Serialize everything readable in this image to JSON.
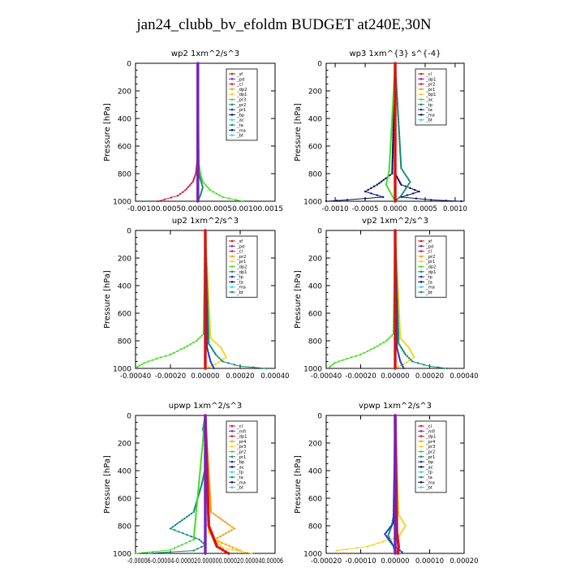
{
  "title": "jan24_clubb_bv_efoldm  BUDGET at240E,30N",
  "colors": {
    "red": "#dd1111",
    "purple": "#7722bb",
    "darkred": "#cc2244",
    "orange": "#ff9900",
    "yellow": "#f2d21a",
    "green": "#44dd22",
    "teal": "#118877",
    "blue": "#1133cc",
    "navy": "#001166",
    "cyan": "#22dddd",
    "magenta": "#bb00bb"
  },
  "chart_data": [
    {
      "type": "line",
      "title": "wp2   1xm^2/s^3",
      "ylabel": "Pressure [hPa]",
      "ylim": [
        1000,
        0
      ],
      "yticks": [
        "0",
        "200",
        "400",
        "600",
        "800",
        "1000"
      ],
      "xlim": [
        -0.00125,
        0.00155
      ],
      "xtick_label": "-0.00100.00050.00000.00050.00100.0015",
      "legend": [
        "_sf",
        "_pd",
        "_cl",
        "_dp2",
        "_dp1",
        "_pr3",
        "_pr2",
        "_pr1",
        "_bp",
        "_ac",
        "_ta",
        "_ma",
        "_bt"
      ],
      "series": [
        {
          "color": "green",
          "x": [
            0,
            1e-05,
            5e-05,
            0.0001,
            0.00025,
            0.0005,
            0.0009
          ],
          "y": [
            0,
            700,
            800,
            860,
            920,
            970,
            1000
          ]
        },
        {
          "color": "darkred",
          "x": [
            0,
            -1e-05,
            -4e-05,
            -0.0001,
            -0.00025,
            -0.0004,
            -0.0008
          ],
          "y": [
            0,
            700,
            800,
            860,
            920,
            960,
            1000
          ]
        },
        {
          "color": "teal",
          "x": [
            0,
            2e-05,
            0.0001,
            5e-05,
            0
          ],
          "y": [
            0,
            800,
            900,
            960,
            1000
          ]
        },
        {
          "color": "purple",
          "x": [
            0,
            0,
            0
          ],
          "y": [
            0,
            500,
            1000
          ]
        }
      ]
    },
    {
      "type": "line",
      "title": "wp3   1xm^{3} s^{-4}",
      "ylabel": "Pressure [hPa]",
      "ylim": [
        1000,
        0
      ],
      "yticks": [
        "0",
        "200",
        "400",
        "600",
        "800",
        "1000"
      ],
      "xlim": [
        -0.00115,
        0.00115
      ],
      "xticks": [
        "-0.0010",
        "-0.0005",
        "0.0000",
        "0.0005",
        "0.0010"
      ],
      "xtick_values": [
        -0.001,
        -0.0005,
        0,
        0.0005,
        0.001
      ],
      "legend": [
        "_cl",
        "_dp1",
        "_pr2",
        "_pr1",
        "_bp1",
        "_ac",
        "_tp",
        "_ta",
        "_ma",
        "_bt"
      ],
      "series": [
        {
          "color": "navy",
          "x": [
            0,
            0,
            0.0001,
            0.0004,
            0.0001,
            0.0006,
            0.0011
          ],
          "y": [
            0,
            800,
            880,
            930,
            970,
            990,
            1000
          ]
        },
        {
          "color": "navy",
          "x": [
            0,
            -5e-05,
            -0.0003,
            -0.0005,
            -0.0002,
            -0.0008,
            -0.00115
          ],
          "y": [
            0,
            800,
            880,
            930,
            970,
            990,
            1000
          ]
        },
        {
          "color": "teal",
          "x": [
            0,
            0.0001,
            0.00025,
            0.0001,
            0
          ],
          "y": [
            0,
            760,
            860,
            960,
            1000
          ]
        },
        {
          "color": "green",
          "x": [
            0,
            -0.0001,
            -0.00015,
            0
          ],
          "y": [
            0,
            780,
            880,
            1000
          ]
        },
        {
          "color": "red",
          "x": [
            0,
            0,
            0
          ],
          "y": [
            0,
            500,
            1000
          ]
        }
      ]
    },
    {
      "type": "line",
      "title": "up2   1xm^2/s^3",
      "ylabel": "Pressure [hPa]",
      "ylim": [
        1000,
        0
      ],
      "yticks": [
        "0",
        "200",
        "400",
        "600",
        "800",
        "1000"
      ],
      "xlim": [
        -0.0004,
        0.0004
      ],
      "xticks": [
        "-0.00040",
        "-0.00020",
        "0.00000",
        "0.00020",
        "0.00040"
      ],
      "xtick_values": [
        -0.0004,
        -0.0002,
        0,
        0.0002,
        0.0004
      ],
      "legend": [
        "_sf",
        "_pd",
        "_cl",
        "_pr2",
        "_pr1",
        "_dp2",
        "_dp1",
        "_tp",
        "_ta",
        "_ma",
        "_bt"
      ],
      "series": [
        {
          "color": "green",
          "x": [
            0,
            -1e-05,
            -5e-05,
            -0.00012,
            -0.0002,
            -0.00028,
            -0.00035,
            -0.00039
          ],
          "y": [
            0,
            750,
            800,
            850,
            900,
            930,
            960,
            990
          ]
        },
        {
          "color": "yellow",
          "x": [
            0,
            3e-05,
            9e-05,
            0.00012,
            6e-05,
            0
          ],
          "y": [
            0,
            780,
            850,
            920,
            970,
            1000
          ]
        },
        {
          "color": "teal",
          "x": [
            0,
            2e-05,
            6e-05,
            0.0001,
            0.0002,
            0.00035
          ],
          "y": [
            0,
            820,
            900,
            950,
            985,
            1000
          ]
        },
        {
          "color": "blue",
          "x": [
            0,
            1e-05,
            3e-05,
            5e-05
          ],
          "y": [
            0,
            850,
            950,
            1000
          ]
        },
        {
          "color": "red",
          "x": [
            0,
            0,
            0
          ],
          "y": [
            0,
            500,
            1000
          ]
        }
      ]
    },
    {
      "type": "line",
      "title": "vp2   1xm^2/s^3",
      "ylabel": "Pressure [hPa]",
      "ylim": [
        1000,
        0
      ],
      "yticks": [
        "0",
        "200",
        "400",
        "600",
        "800",
        "1000"
      ],
      "xlim": [
        -0.0004,
        0.0004
      ],
      "xticks": [
        "-0.00040",
        "-0.00020",
        "0.00000",
        "0.00020",
        "0.00040"
      ],
      "xtick_values": [
        -0.0004,
        -0.0002,
        0,
        0.0002,
        0.0004
      ],
      "legend": [
        "_sf",
        "_pd",
        "_cl",
        "_pr2",
        "_pr1",
        "_dp2",
        "_dp1",
        "_tp",
        "_ta",
        "_ma",
        "_bt"
      ],
      "series": [
        {
          "color": "green",
          "x": [
            0,
            -1e-05,
            -5e-05,
            -0.00012,
            -0.0002,
            -0.00028,
            -0.00035,
            -0.00038
          ],
          "y": [
            0,
            750,
            800,
            850,
            900,
            930,
            960,
            990
          ]
        },
        {
          "color": "yellow",
          "x": [
            0,
            3e-05,
            8e-05,
            0.00011,
            5e-05,
            0
          ],
          "y": [
            0,
            780,
            850,
            920,
            970,
            1000
          ]
        },
        {
          "color": "teal",
          "x": [
            0,
            2e-05,
            6e-05,
            0.0001,
            0.0002,
            0.0003
          ],
          "y": [
            0,
            820,
            900,
            950,
            985,
            1000
          ]
        },
        {
          "color": "blue",
          "x": [
            0,
            1e-05,
            3e-05,
            5e-05
          ],
          "y": [
            0,
            850,
            950,
            1000
          ]
        },
        {
          "color": "red",
          "x": [
            0,
            0,
            0
          ],
          "y": [
            0,
            500,
            1000
          ]
        }
      ]
    },
    {
      "type": "line",
      "title": "upwp   1xm^2/s^3",
      "ylabel": "Pressure [hPa]",
      "ylim": [
        1000,
        0
      ],
      "yticks": [
        "0",
        "200",
        "400",
        "600",
        "800",
        "1000"
      ],
      "xlim": [
        -6e-05,
        6e-05
      ],
      "xtick_label": "-0.00006-0.00004-0.000020.000000.000020.000040.00006",
      "legend": [
        "_cl",
        "_mfl",
        "_dp1",
        "_pr4",
        "_pr3",
        "_pr2",
        "_pr1",
        "_bp",
        "_ac",
        "_tp",
        "_ta",
        "_ma",
        "_bt"
      ],
      "series": [
        {
          "color": "teal",
          "x": [
            0,
            -2e-06,
            2e-06,
            -3e-06,
            -1e-05,
            -3e-05,
            -5e-06,
            0,
            -1e-05,
            -5e-05
          ],
          "y": [
            0,
            100,
            300,
            500,
            700,
            820,
            900,
            940,
            980,
            1000
          ]
        },
        {
          "color": "orange",
          "x": [
            0,
            5e-06,
            2.5e-05,
            8e-06,
            3e-05
          ],
          "y": [
            0,
            700,
            820,
            900,
            980
          ]
        },
        {
          "color": "yellow",
          "x": [
            0,
            3e-06,
            1.5e-05,
            4e-05
          ],
          "y": [
            0,
            850,
            960,
            1000
          ]
        },
        {
          "color": "red",
          "x": [
            0,
            3e-06,
            1e-05,
            2e-05
          ],
          "y": [
            0,
            800,
            950,
            1000
          ]
        },
        {
          "color": "green",
          "x": [
            0,
            -1e-05,
            -3e-05,
            -6e-05
          ],
          "y": [
            0,
            900,
            975,
            1000
          ]
        },
        {
          "color": "purple",
          "x": [
            0,
            0,
            0
          ],
          "y": [
            0,
            500,
            1000
          ]
        }
      ]
    },
    {
      "type": "line",
      "title": "vpwp   1xm^2/s^3",
      "ylabel": "Pressure [hPa]",
      "ylim": [
        1000,
        0
      ],
      "yticks": [
        "0",
        "200",
        "400",
        "600",
        "800",
        "1000"
      ],
      "xlim": [
        -0.0002,
        0.0002
      ],
      "xticks": [
        "-0.00020",
        "-0.00010",
        "0.00000",
        "0.00010",
        "0.00020"
      ],
      "xtick_values": [
        -0.0002,
        -0.0001,
        0,
        0.0001,
        0.0002
      ],
      "legend": [
        "_cl",
        "_mfl",
        "_dp1",
        "_pr4",
        "_pr3",
        "_pr2",
        "_pr1",
        "_bp",
        "_ac",
        "_tp",
        "_ta",
        "_ma",
        "_bt"
      ],
      "series": [
        {
          "color": "teal",
          "x": [
            0,
            -2e-06,
            -1e-05,
            -2e-05,
            -5e-06,
            0
          ],
          "y": [
            0,
            700,
            800,
            870,
            950,
            1000
          ]
        },
        {
          "color": "yellow",
          "x": [
            0,
            1e-05,
            3e-05,
            1e-05,
            -8e-05,
            -0.00017
          ],
          "y": [
            0,
            720,
            800,
            880,
            950,
            980
          ]
        },
        {
          "color": "blue",
          "x": [
            0,
            -5e-06,
            -3e-05,
            -1e-05,
            2e-05
          ],
          "y": [
            0,
            780,
            860,
            930,
            990
          ]
        },
        {
          "color": "red",
          "x": [
            0,
            5e-06,
            1e-05,
            8e-06
          ],
          "y": [
            0,
            850,
            950,
            1000
          ]
        },
        {
          "color": "purple",
          "x": [
            0,
            0,
            0
          ],
          "y": [
            0,
            500,
            1000
          ]
        }
      ]
    }
  ]
}
